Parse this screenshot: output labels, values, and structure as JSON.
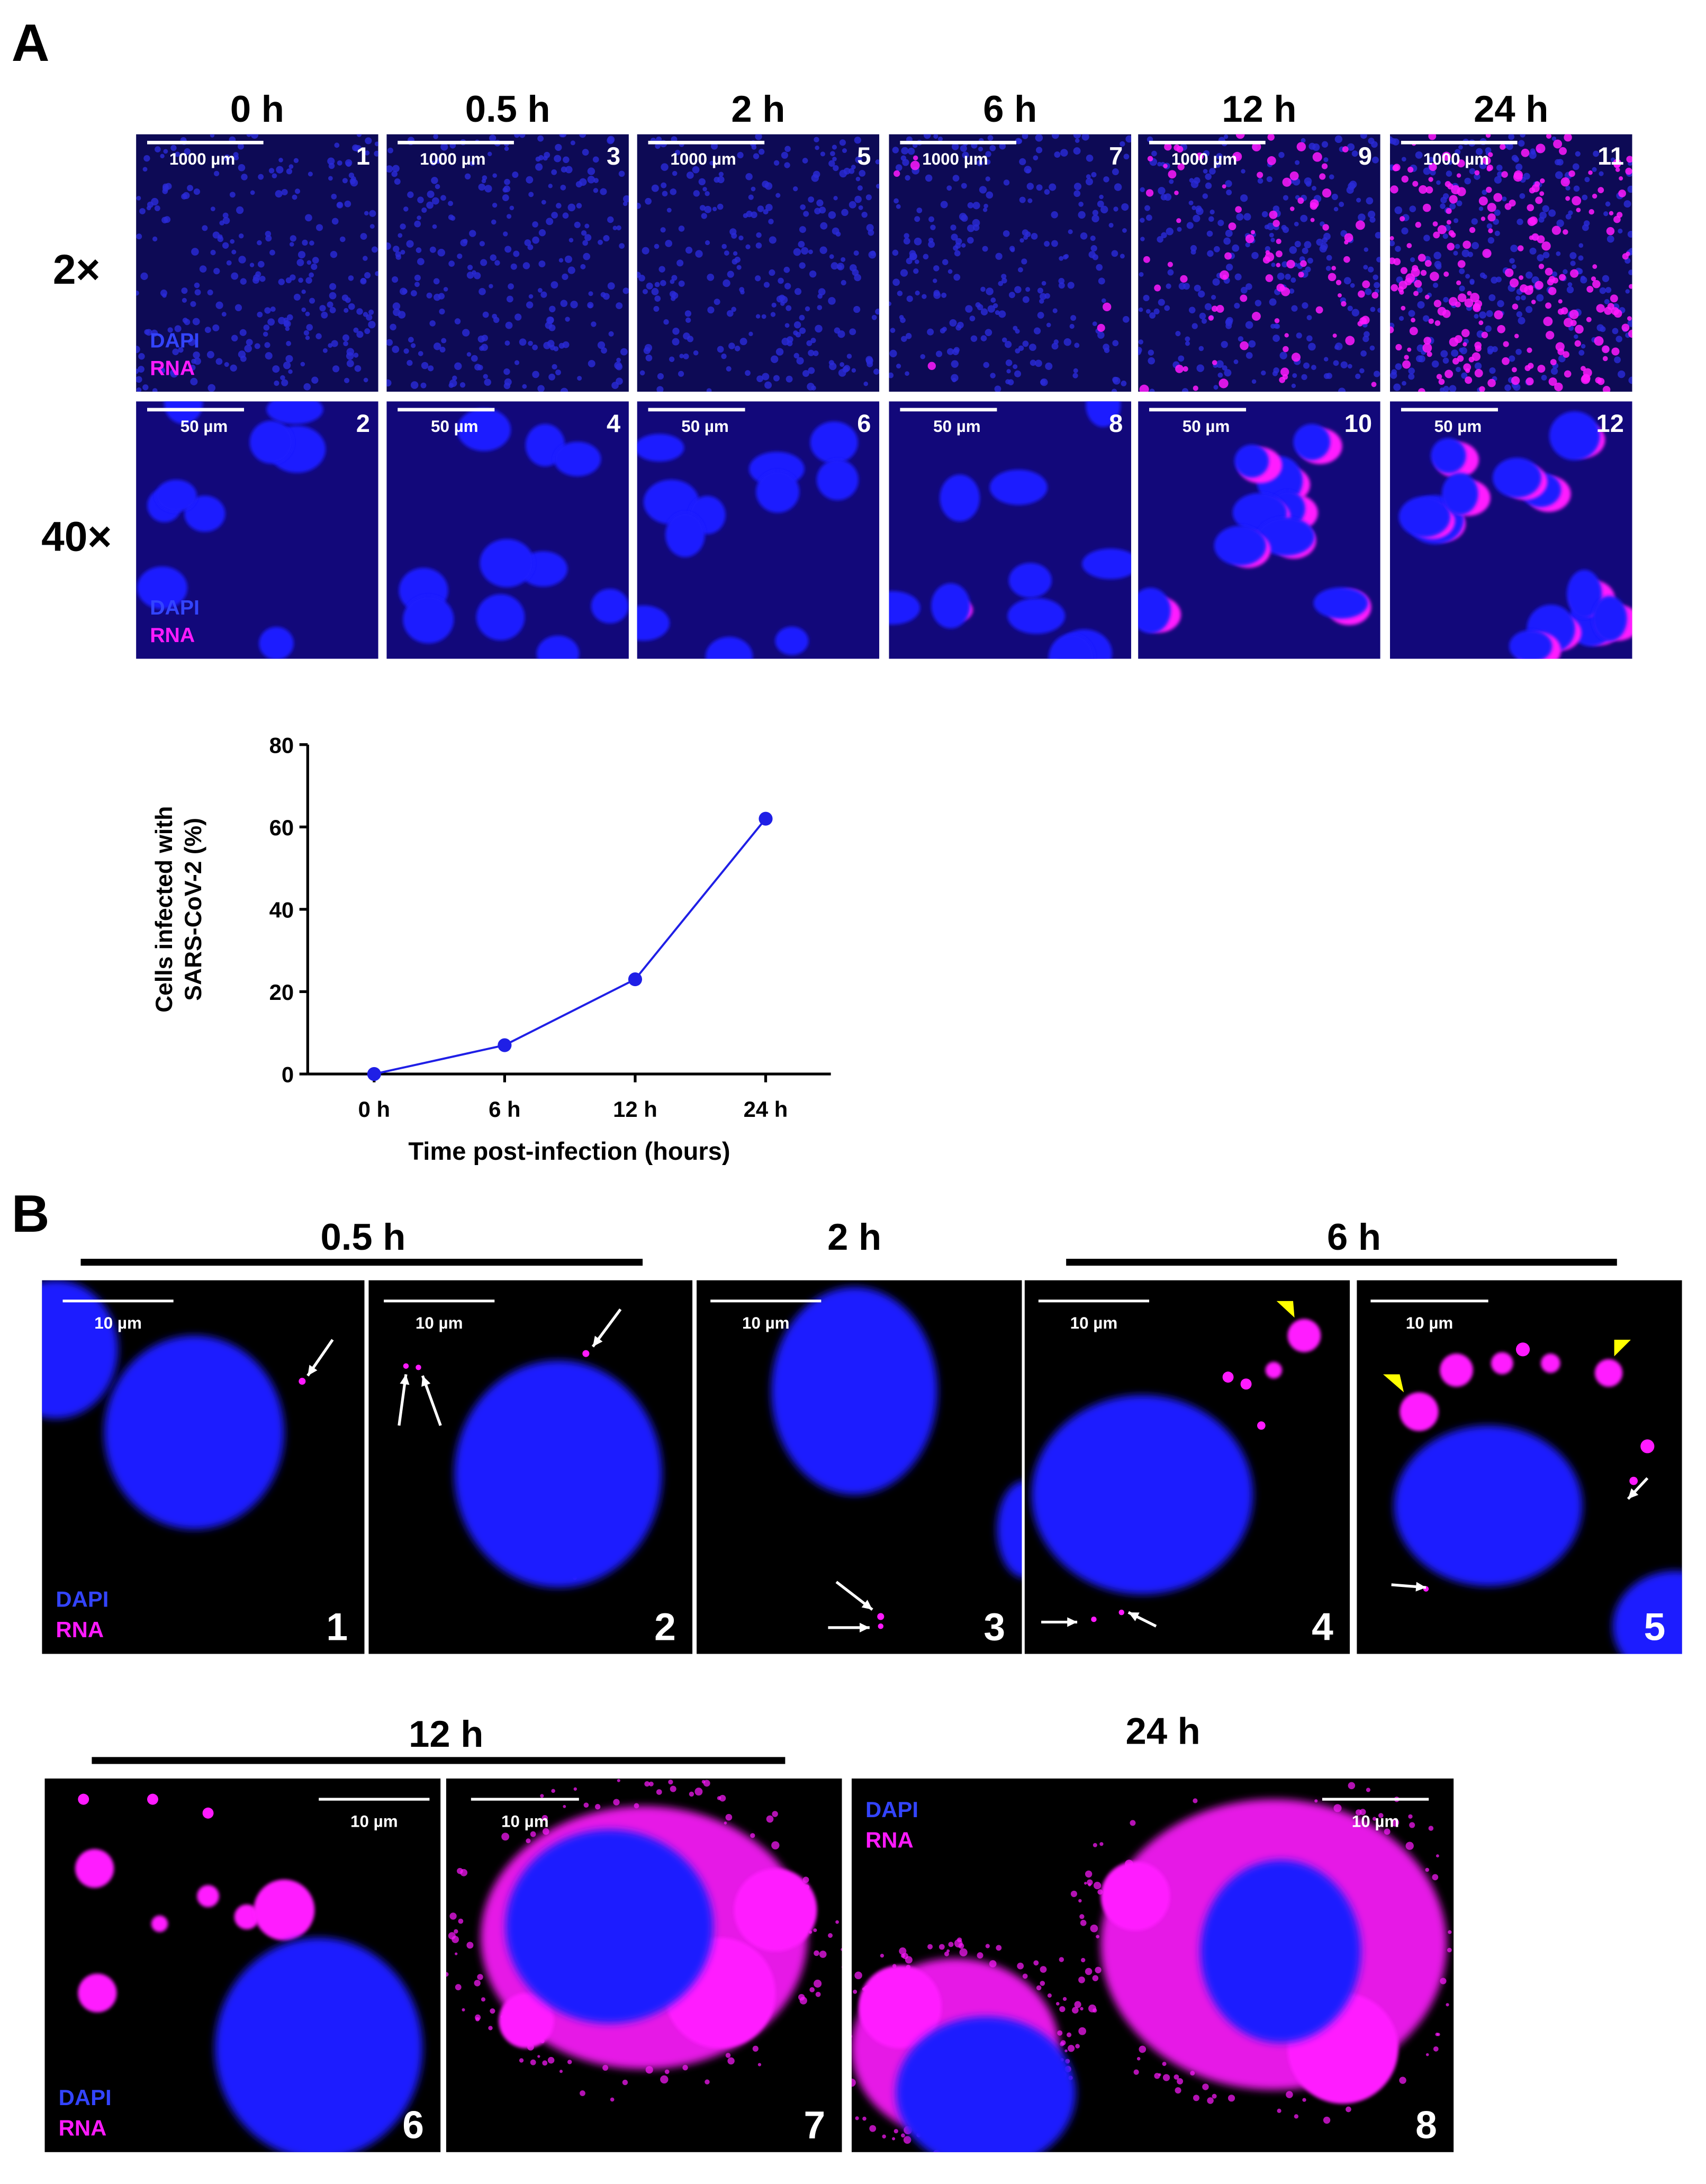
{
  "panel_a": {
    "label": "A",
    "columns": [
      "0 h",
      "0.5 h",
      "2 h",
      "6 h",
      "12 h",
      "24 h"
    ],
    "rows": [
      "2×",
      "40×"
    ],
    "channels": [
      "DAPI",
      "RNA"
    ],
    "images": [
      {
        "number": 1,
        "scale": "1000 µm"
      },
      {
        "number": 2,
        "scale": "50 µm"
      },
      {
        "number": 3,
        "scale": "1000 µm"
      },
      {
        "number": 4,
        "scale": "50 µm"
      },
      {
        "number": 5,
        "scale": "1000 µm"
      },
      {
        "number": 6,
        "scale": "50 µm"
      },
      {
        "number": 7,
        "scale": "1000 µm"
      },
      {
        "number": 8,
        "scale": "50 µm"
      },
      {
        "number": 9,
        "scale": "1000 µm"
      },
      {
        "number": 10,
        "scale": "50 µm"
      },
      {
        "number": 11,
        "scale": "1000 µm"
      },
      {
        "number": 12,
        "scale": "50 µm"
      }
    ]
  },
  "chart_data": {
    "type": "line",
    "ylabel": [
      "Cells infected with",
      "SARS-CoV-2 (%)"
    ],
    "xlabel": "Time post-infection (hours)",
    "categories": [
      "0 h",
      "6 h",
      "12 h",
      "24 h"
    ],
    "values": [
      0,
      7,
      23,
      62
    ],
    "color": "#1f1fe6",
    "ylim": [
      0,
      80
    ],
    "yticks": [
      0,
      20,
      40,
      60,
      80
    ]
  },
  "panel_b": {
    "label": "B",
    "channels": [
      "DAPI",
      "RNA"
    ],
    "groups": [
      "0.5 h",
      "2 h",
      "6 h",
      "12 h",
      "24 h"
    ],
    "images": [
      {
        "number": 1,
        "scale": "10 µm"
      },
      {
        "number": 2,
        "scale": "10 µm"
      },
      {
        "number": 3,
        "scale": "10 µm"
      },
      {
        "number": 4,
        "scale": "10 µm"
      },
      {
        "number": 5,
        "scale": "10 µm"
      },
      {
        "number": 6,
        "scale": "10 µm"
      },
      {
        "number": 7,
        "scale": "10 µm"
      },
      {
        "number": 8,
        "scale": "10 µm"
      }
    ]
  }
}
